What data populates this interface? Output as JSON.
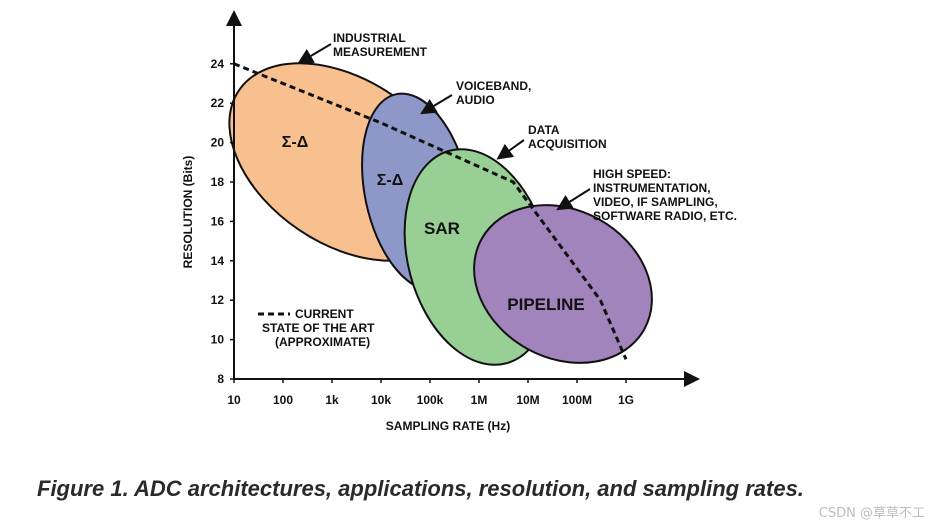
{
  "caption": "Figure 1. ADC architectures, applications, resolution, and sampling rates.",
  "watermark": "CSDN @草草不工",
  "chart_data": {
    "type": "diagram",
    "xlabel": "SAMPLING RATE (Hz)",
    "ylabel": "RESOLUTION (Bits)",
    "x_scale": "log",
    "x_ticks": [
      "10",
      "100",
      "1k",
      "10k",
      "100k",
      "1M",
      "10M",
      "100M",
      "1G"
    ],
    "y_ticks": [
      "8",
      "10",
      "12",
      "14",
      "16",
      "18",
      "20",
      "22",
      "24"
    ],
    "regions": [
      {
        "name": "Σ-Δ",
        "color": "#f7c08e"
      },
      {
        "name": "Σ-Δ",
        "color": "#8d98c9"
      },
      {
        "name": "SAR",
        "color": "#98cf95"
      },
      {
        "name": "PIPELINE",
        "color": "#a284bd"
      }
    ],
    "applications": [
      {
        "line1": "INDUSTRIAL",
        "line2": "MEASUREMENT"
      },
      {
        "line1": "VOICEBAND,",
        "line2": "AUDIO"
      },
      {
        "line1": "DATA",
        "line2": "ACQUISITION"
      },
      {
        "line1": "HIGH SPEED:",
        "line2": "INSTRUMENTATION,",
        "line3": "VIDEO, IF SAMPLING,",
        "line4": "SOFTWARE RADIO, ETC."
      }
    ],
    "legend": {
      "line1": "CURRENT",
      "line2": "STATE OF THE ART",
      "line3": "(APPROXIMATE)"
    },
    "state_of_art_line": [
      {
        "x": 10,
        "y": 24
      },
      {
        "x": 10000,
        "y": 21
      },
      {
        "x": 5000000,
        "y": 18
      },
      {
        "x": 300000000,
        "y": 12
      },
      {
        "x": 1000000000,
        "y": 9
      }
    ]
  }
}
